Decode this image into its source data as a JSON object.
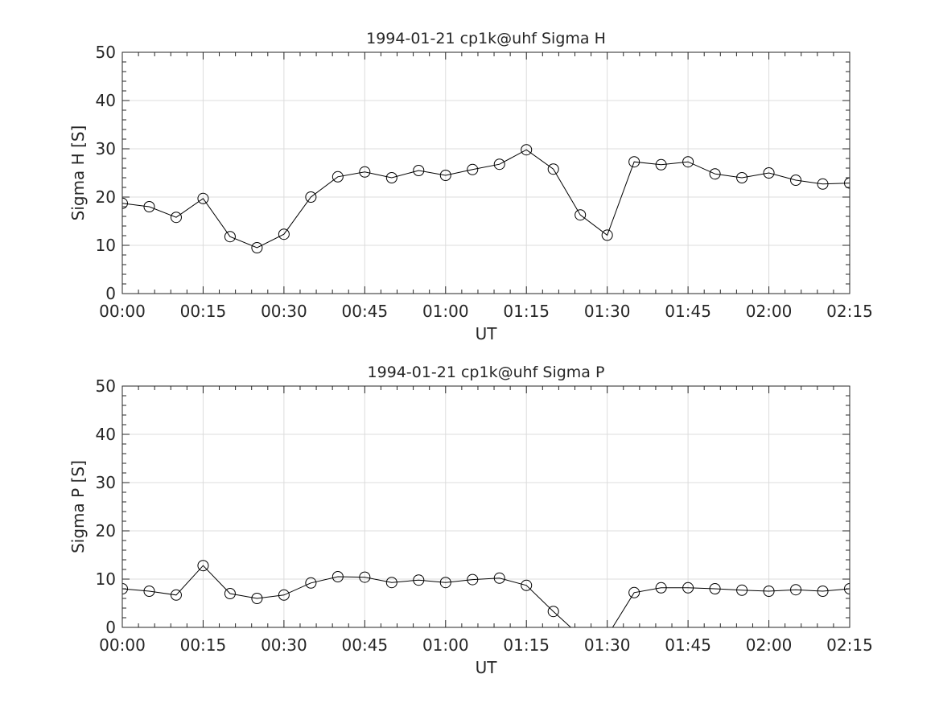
{
  "chart_data": [
    {
      "type": "line",
      "title": "1994-01-21  cp1k@uhf Sigma H",
      "xlabel": "UT",
      "ylabel": "Sigma H [S]",
      "ylim": [
        0,
        50
      ],
      "xlim_minutes": [
        0,
        135
      ],
      "yticks": [
        "0",
        "10",
        "20",
        "30",
        "40",
        "50"
      ],
      "xticks": [
        "00:00",
        "00:15",
        "00:30",
        "00:45",
        "01:00",
        "01:15",
        "01:30",
        "01:45",
        "02:00",
        "02:15"
      ],
      "grid": true,
      "marker": "circle",
      "x_minutes": [
        0,
        5,
        10,
        15,
        20,
        25,
        30,
        35,
        40,
        45,
        50,
        55,
        60,
        65,
        70,
        75,
        80,
        85,
        90,
        95,
        100,
        105,
        110,
        115,
        120,
        125,
        130,
        135
      ],
      "values": [
        18.7,
        18.0,
        15.8,
        19.7,
        11.8,
        9.5,
        12.3,
        20.0,
        24.2,
        25.2,
        24.0,
        25.5,
        24.5,
        25.7,
        26.8,
        29.8,
        25.8,
        16.3,
        12.1,
        27.3,
        26.7,
        27.3,
        24.8,
        24.0,
        25.0,
        23.5,
        22.7,
        22.9
      ]
    },
    {
      "type": "line",
      "title": "1994-01-21  cp1k@uhf Sigma P",
      "xlabel": "UT",
      "ylabel": "Sigma P [S]",
      "ylim": [
        0,
        50
      ],
      "xlim_minutes": [
        0,
        135
      ],
      "yticks": [
        "0",
        "10",
        "20",
        "30",
        "40",
        "50"
      ],
      "xticks": [
        "00:00",
        "00:15",
        "00:30",
        "00:45",
        "01:00",
        "01:15",
        "01:30",
        "01:45",
        "02:00",
        "02:15"
      ],
      "grid": true,
      "marker": "circle",
      "x_minutes": [
        0,
        5,
        10,
        15,
        20,
        25,
        30,
        35,
        40,
        45,
        50,
        55,
        60,
        65,
        70,
        75,
        80,
        85,
        90,
        95,
        100,
        105,
        110,
        115,
        120,
        125,
        130,
        135
      ],
      "values": [
        8.0,
        7.5,
        6.7,
        12.8,
        7.0,
        6.0,
        6.7,
        9.2,
        10.5,
        10.4,
        9.3,
        9.8,
        9.3,
        9.9,
        10.2,
        8.7,
        3.3,
        -1.8,
        -1.8,
        7.2,
        8.2,
        8.2,
        8.0,
        7.7,
        7.5,
        7.8,
        7.5,
        8.0
      ]
    }
  ]
}
